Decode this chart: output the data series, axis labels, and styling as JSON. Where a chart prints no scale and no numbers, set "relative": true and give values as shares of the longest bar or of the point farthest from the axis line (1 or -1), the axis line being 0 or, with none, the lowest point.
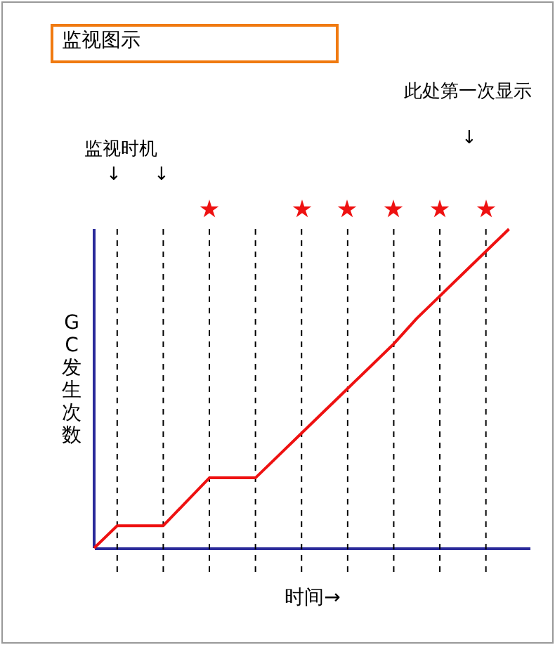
{
  "chart_data": {
    "type": "line",
    "title": "监视图示",
    "xlabel": "时间→",
    "ylabel": "GC发生次数",
    "relative": true,
    "tick_labels": false,
    "grid": "x",
    "categories": [
      null,
      null,
      null,
      null,
      null,
      null,
      null,
      null,
      null,
      null,
      null,
      null,
      null,
      null,
      null,
      null,
      null,
      null,
      null
    ],
    "series": [
      {
        "color": "#ee1111",
        "values": [
          0,
          0.07,
          0.07,
          0.07,
          0.145,
          0.22,
          0.22,
          0.22,
          0.29,
          0.36,
          0.43,
          0.5,
          0.57,
          0.64,
          0.72,
          0.79,
          0.86,
          0.93,
          1
        ]
      }
    ],
    "annotations": [
      "监视时机",
      "↓",
      "↓",
      "此处第一次显示",
      "↓"
    ]
  }
}
